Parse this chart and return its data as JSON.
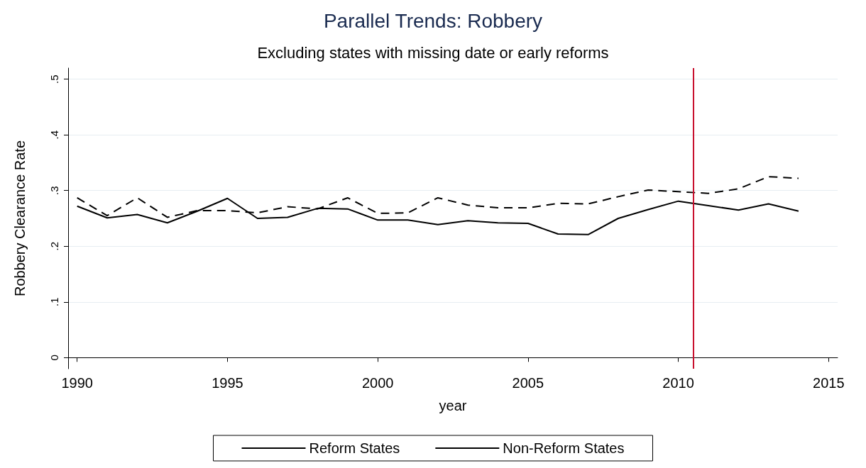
{
  "chart_data": {
    "type": "line",
    "title": "Parallel Trends: Robbery",
    "subtitle": "Excluding states with missing date or early reforms",
    "xlabel": "year",
    "ylabel": "Robbery Clearance Rate",
    "x": [
      1990,
      1991,
      1992,
      1993,
      1994,
      1995,
      1996,
      1997,
      1998,
      1999,
      2000,
      2001,
      2002,
      2003,
      2004,
      2005,
      2006,
      2007,
      2008,
      2009,
      2010,
      2011,
      2012,
      2013,
      2014
    ],
    "series": [
      {
        "name": "Reform States",
        "color": "#000000",
        "line_style": "solid",
        "values": [
          0.272,
          0.251,
          0.257,
          0.242,
          0.263,
          0.286,
          0.25,
          0.252,
          0.268,
          0.267,
          0.247,
          0.247,
          0.239,
          0.246,
          0.242,
          0.241,
          0.222,
          0.221,
          0.25,
          0.266,
          0.281,
          0.273,
          0.265,
          0.276,
          0.263
        ]
      },
      {
        "name": "Non-Reform States",
        "color": "#000000",
        "line_style": "dashed",
        "values": [
          0.287,
          0.255,
          0.287,
          0.252,
          0.264,
          0.264,
          0.26,
          0.271,
          0.267,
          0.287,
          0.259,
          0.26,
          0.287,
          0.274,
          0.269,
          0.269,
          0.277,
          0.276,
          0.289,
          0.301,
          0.298,
          0.295,
          0.303,
          0.325,
          0.322
        ]
      }
    ],
    "xlim": [
      1989.7,
      2015.3
    ],
    "xticks": [
      1990,
      1995,
      2000,
      2005,
      2010,
      2015
    ],
    "ylim": [
      -0.02,
      0.52
    ],
    "yticks": [
      {
        "value": 0,
        "label": "0"
      },
      {
        "value": 0.1,
        "label": ".1"
      },
      {
        "value": 0.2,
        "label": ".2"
      },
      {
        "value": 0.3,
        "label": ".3"
      },
      {
        "value": 0.4,
        "label": ".4"
      },
      {
        "value": 0.5,
        "label": ".5"
      }
    ],
    "ref_lines": [
      {
        "axis": "x",
        "value": 2010.5,
        "color": "#c8102e"
      }
    ],
    "grid": "y",
    "legend": "bottom",
    "marker": "none"
  }
}
